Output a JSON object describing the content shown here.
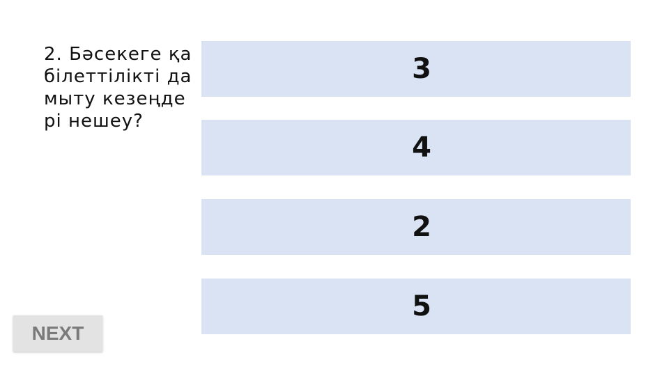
{
  "question": {
    "text": "2. Бәсекеге қабілеттілікті дамыту кезеңдері нешеу?"
  },
  "options": [
    {
      "label": "3"
    },
    {
      "label": "4"
    },
    {
      "label": "2"
    },
    {
      "label": "5"
    }
  ],
  "next_button": {
    "label": "NEXT"
  },
  "colors": {
    "option_bg": "#dae3f3",
    "button_bg": "#e3e3e3",
    "button_text": "#7a7a7a"
  }
}
